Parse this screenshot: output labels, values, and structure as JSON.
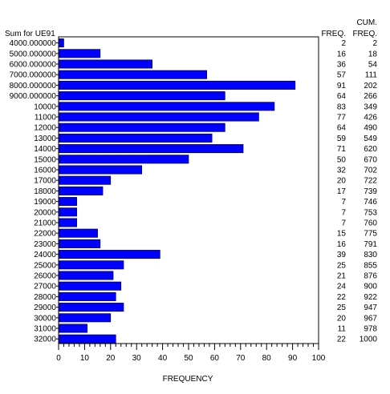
{
  "chart_data": {
    "type": "bar",
    "orientation": "horizontal",
    "ylabel": "Sum for UE91",
    "xlabel": "FREQUENCY",
    "freq_header": "FREQ.",
    "cum_header_line1": "CUM.",
    "cum_header_line2": "FREQ.",
    "bar_color": "#0000ff",
    "xlim": [
      0,
      100
    ],
    "xticks": [
      "0",
      "10",
      "20",
      "30",
      "40",
      "50",
      "60",
      "70",
      "80",
      "90",
      "100"
    ],
    "categories": [
      "4000.000000",
      "5000.000000",
      "6000.000000",
      "7000.000000",
      "8000.000000",
      "9000.000000",
      "10000",
      "11000",
      "12000",
      "13000",
      "14000",
      "15000",
      "16000",
      "17000",
      "18000",
      "19000",
      "20000",
      "21000",
      "22000",
      "23000",
      "24000",
      "25000",
      "26000",
      "27000",
      "28000",
      "29000",
      "30000",
      "31000",
      "32000"
    ],
    "values": [
      2,
      16,
      36,
      57,
      91,
      64,
      83,
      77,
      64,
      59,
      71,
      50,
      32,
      20,
      17,
      7,
      7,
      7,
      15,
      16,
      39,
      25,
      21,
      24,
      22,
      25,
      20,
      11,
      22
    ],
    "freq": [
      "2",
      "16",
      "36",
      "57",
      "91",
      "64",
      "83",
      "77",
      "64",
      "59",
      "71",
      "50",
      "32",
      "20",
      "17",
      "7",
      "7",
      "7",
      "15",
      "16",
      "39",
      "25",
      "21",
      "24",
      "22",
      "25",
      "20",
      "11",
      "22"
    ],
    "cum_freq": [
      "2",
      "18",
      "54",
      "111",
      "202",
      "266",
      "349",
      "426",
      "490",
      "549",
      "620",
      "670",
      "702",
      "722",
      "739",
      "746",
      "753",
      "760",
      "775",
      "791",
      "830",
      "855",
      "876",
      "900",
      "922",
      "947",
      "967",
      "978",
      "1000"
    ]
  }
}
